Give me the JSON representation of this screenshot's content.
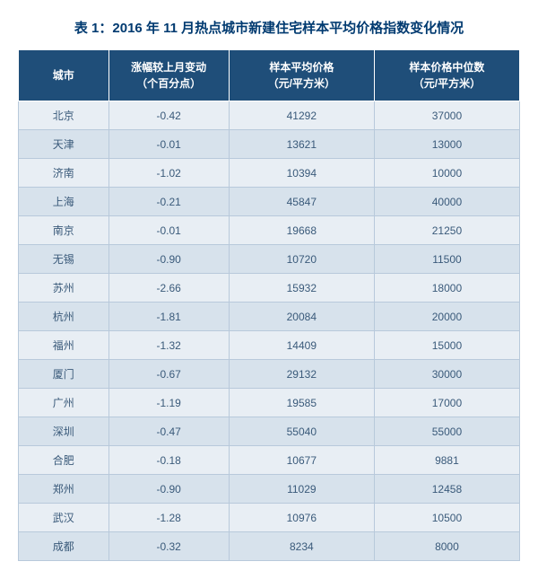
{
  "table": {
    "title": "表 1：2016 年 11 月热点城市新建住宅样本平均价格指数变化情况",
    "columns": [
      {
        "key": "city",
        "label1": "城市",
        "label2": ""
      },
      {
        "key": "change",
        "label1": "涨幅较上月变动",
        "label2": "（个百分点）"
      },
      {
        "key": "avg",
        "label1": "样本平均价格",
        "label2": "（元/平方米）"
      },
      {
        "key": "median",
        "label1": "样本价格中位数",
        "label2": "（元/平方米）"
      }
    ],
    "rows": [
      {
        "city": "北京",
        "change": "-0.42",
        "avg": "41292",
        "median": "37000"
      },
      {
        "city": "天津",
        "change": "-0.01",
        "avg": "13621",
        "median": "13000"
      },
      {
        "city": "济南",
        "change": "-1.02",
        "avg": "10394",
        "median": "10000"
      },
      {
        "city": "上海",
        "change": "-0.21",
        "avg": "45847",
        "median": "40000"
      },
      {
        "city": "南京",
        "change": "-0.01",
        "avg": "19668",
        "median": "21250"
      },
      {
        "city": "无锡",
        "change": "-0.90",
        "avg": "10720",
        "median": "11500"
      },
      {
        "city": "苏州",
        "change": "-2.66",
        "avg": "15932",
        "median": "18000"
      },
      {
        "city": "杭州",
        "change": "-1.81",
        "avg": "20084",
        "median": "20000"
      },
      {
        "city": "福州",
        "change": "-1.32",
        "avg": "14409",
        "median": "15000"
      },
      {
        "city": "厦门",
        "change": "-0.67",
        "avg": "29132",
        "median": "30000"
      },
      {
        "city": "广州",
        "change": "-1.19",
        "avg": "19585",
        "median": "17000"
      },
      {
        "city": "深圳",
        "change": "-0.47",
        "avg": "55040",
        "median": "55000"
      },
      {
        "city": "合肥",
        "change": "-0.18",
        "avg": "10677",
        "median": "9881"
      },
      {
        "city": "郑州",
        "change": "-0.90",
        "avg": "11029",
        "median": "12458"
      },
      {
        "city": "武汉",
        "change": "-1.28",
        "avg": "10976",
        "median": "10500"
      },
      {
        "city": "成都",
        "change": "-0.32",
        "avg": "8234",
        "median": "8000"
      }
    ],
    "style": {
      "header_bg": "#1f4e79",
      "header_fg": "#ffffff",
      "row_even_bg": "#e8eef4",
      "row_odd_bg": "#d7e2ec",
      "cell_fg": "#3a5a7a",
      "border_color": "#b8c9db",
      "title_color": "#003a70",
      "title_fontsize": 15,
      "cell_fontsize": 12,
      "col_widths_pct": [
        18,
        24,
        29,
        29
      ]
    }
  }
}
